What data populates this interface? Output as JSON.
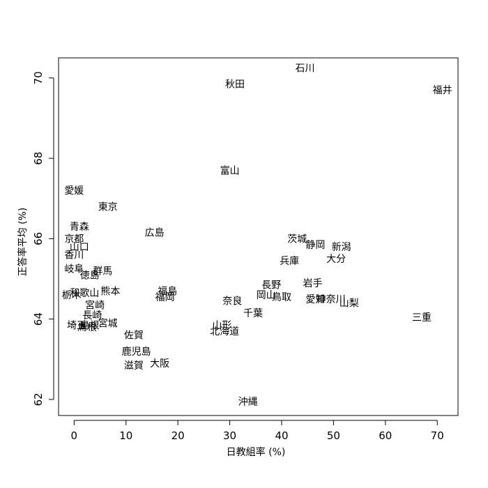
{
  "chart_data": {
    "type": "scatter",
    "title": "",
    "xlabel": "日教組率 (%)",
    "ylabel": "正答率平均 (%)",
    "xlim": [
      -3,
      74
    ],
    "ylim": [
      61.6,
      70.5
    ],
    "xticks": [
      "0",
      "10",
      "20",
      "30",
      "40",
      "50",
      "60",
      "70"
    ],
    "yticks": [
      "62",
      "64",
      "66",
      "68",
      "70"
    ],
    "grid": false,
    "points": [
      {
        "label": "石川",
        "x": 44.5,
        "y": 70.25
      },
      {
        "label": "秋田",
        "x": 31.0,
        "y": 69.85
      },
      {
        "label": "福井",
        "x": 71.0,
        "y": 69.7
      },
      {
        "label": "富山",
        "x": 30.0,
        "y": 67.7
      },
      {
        "label": "愛媛",
        "x": 0.0,
        "y": 67.2
      },
      {
        "label": "東京",
        "x": 6.5,
        "y": 66.8
      },
      {
        "label": "青森",
        "x": 1.0,
        "y": 66.3
      },
      {
        "label": "広島",
        "x": 15.5,
        "y": 66.15
      },
      {
        "label": "京都",
        "x": 0.0,
        "y": 66.0
      },
      {
        "label": "山口",
        "x": 1.0,
        "y": 65.8
      },
      {
        "label": "茨城",
        "x": 43.0,
        "y": 66.0
      },
      {
        "label": "静岡",
        "x": 46.5,
        "y": 65.85
      },
      {
        "label": "新潟",
        "x": 51.5,
        "y": 65.8
      },
      {
        "label": "香川",
        "x": 0.0,
        "y": 65.6
      },
      {
        "label": "兵庫",
        "x": 41.5,
        "y": 65.45
      },
      {
        "label": "大分",
        "x": 50.5,
        "y": 65.5
      },
      {
        "label": "岐阜",
        "x": 0.0,
        "y": 65.25
      },
      {
        "label": "群馬",
        "x": 5.5,
        "y": 65.2
      },
      {
        "label": "徳島",
        "x": 3.0,
        "y": 65.1
      },
      {
        "label": "岩手",
        "x": 46.0,
        "y": 64.9
      },
      {
        "label": "長野",
        "x": 38.0,
        "y": 64.85
      },
      {
        "label": "熊本",
        "x": 7.0,
        "y": 64.7
      },
      {
        "label": "福島",
        "x": 18.0,
        "y": 64.7
      },
      {
        "label": "栃木",
        "x": -0.5,
        "y": 64.6
      },
      {
        "label": "和歌山",
        "x": 2.0,
        "y": 64.65
      },
      {
        "label": "福岡",
        "x": 17.5,
        "y": 64.55
      },
      {
        "label": "岡山",
        "x": 37.0,
        "y": 64.6
      },
      {
        "label": "鳥取",
        "x": 40.0,
        "y": 64.55
      },
      {
        "label": "愛知",
        "x": 46.5,
        "y": 64.5
      },
      {
        "label": "神奈川",
        "x": 49.5,
        "y": 64.5
      },
      {
        "label": "山梨",
        "x": 53.0,
        "y": 64.4
      },
      {
        "label": "奈良",
        "x": 30.5,
        "y": 64.45
      },
      {
        "label": "宮崎",
        "x": 4.0,
        "y": 64.35
      },
      {
        "label": "千葉",
        "x": 34.5,
        "y": 64.15
      },
      {
        "label": "三重",
        "x": 67.0,
        "y": 64.05
      },
      {
        "label": "長崎",
        "x": 3.5,
        "y": 64.1
      },
      {
        "label": "宮城",
        "x": 6.5,
        "y": 63.9
      },
      {
        "label": "埼玉",
        "x": 0.5,
        "y": 63.85
      },
      {
        "label": "島根",
        "x": 3.0,
        "y": 63.85
      },
      {
        "label": "鳥根",
        "x": 2.5,
        "y": 63.8
      },
      {
        "label": "山形",
        "x": 28.5,
        "y": 63.85
      },
      {
        "label": "北海道",
        "x": 29.0,
        "y": 63.7
      },
      {
        "label": "佐賀",
        "x": 11.5,
        "y": 63.6
      },
      {
        "label": "鹿児島",
        "x": 12.0,
        "y": 63.2
      },
      {
        "label": "大阪",
        "x": 16.5,
        "y": 62.9
      },
      {
        "label": "滋賀",
        "x": 11.5,
        "y": 62.85
      },
      {
        "label": "沖縄",
        "x": 33.5,
        "y": 61.95
      }
    ]
  }
}
